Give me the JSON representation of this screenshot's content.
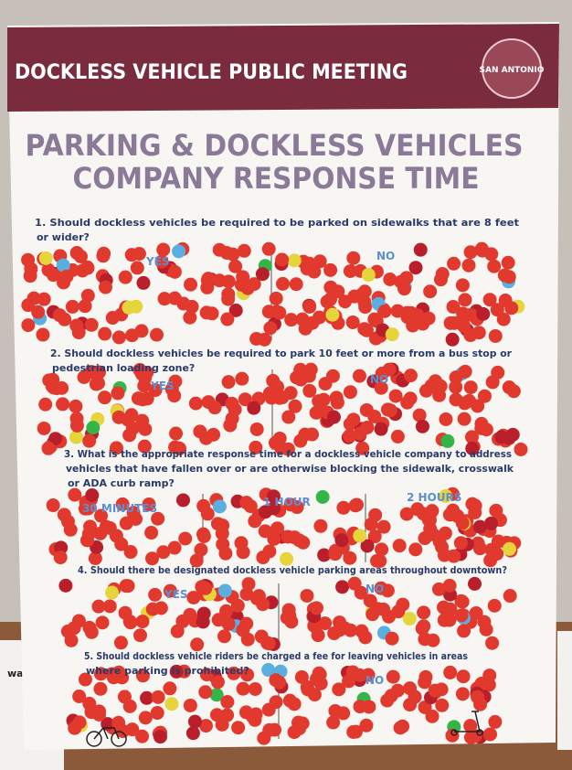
{
  "header": {
    "title": "DOCKLESS VEHICLE PUBLIC MEETING",
    "logo": "SAN ANTONIO"
  },
  "title": [
    "PARKING & DOCKLESS VEHICLES",
    "COMPANY RESPONSE TIME"
  ],
  "side_text": "walks)",
  "questions": [
    {
      "text": [
        "1. Should dockless vehicles be required to be parked on sidewalks that are 8 feet",
        "or wider?"
      ],
      "options": [
        "YES",
        "NO"
      ]
    },
    {
      "text": [
        "2. Should dockless vehicles be required to park 10 feet or more from a bus stop or",
        "pedestrian loading zone?"
      ],
      "options": [
        "YES",
        "NO"
      ]
    },
    {
      "text": [
        "3. What is the appropriate response time for a dockless vehicle company to address",
        "vehicles that have fallen over or are otherwise blocking the sidewalk, crosswalk",
        "or ADA curb ramp?"
      ],
      "options": [
        "30 MINUTES",
        "1 HOUR",
        "2 HOURS"
      ]
    },
    {
      "text": [
        "4. Should there be designated dockless vehicle parking areas throughout downtown?"
      ],
      "options": [
        "YES",
        "NO"
      ]
    },
    {
      "text": [
        "5. Should dockless vehicle riders be charged a fee for leaving vehicles in areas",
        "where parking is prohibited?"
      ],
      "options": [
        "NO"
      ]
    }
  ]
}
